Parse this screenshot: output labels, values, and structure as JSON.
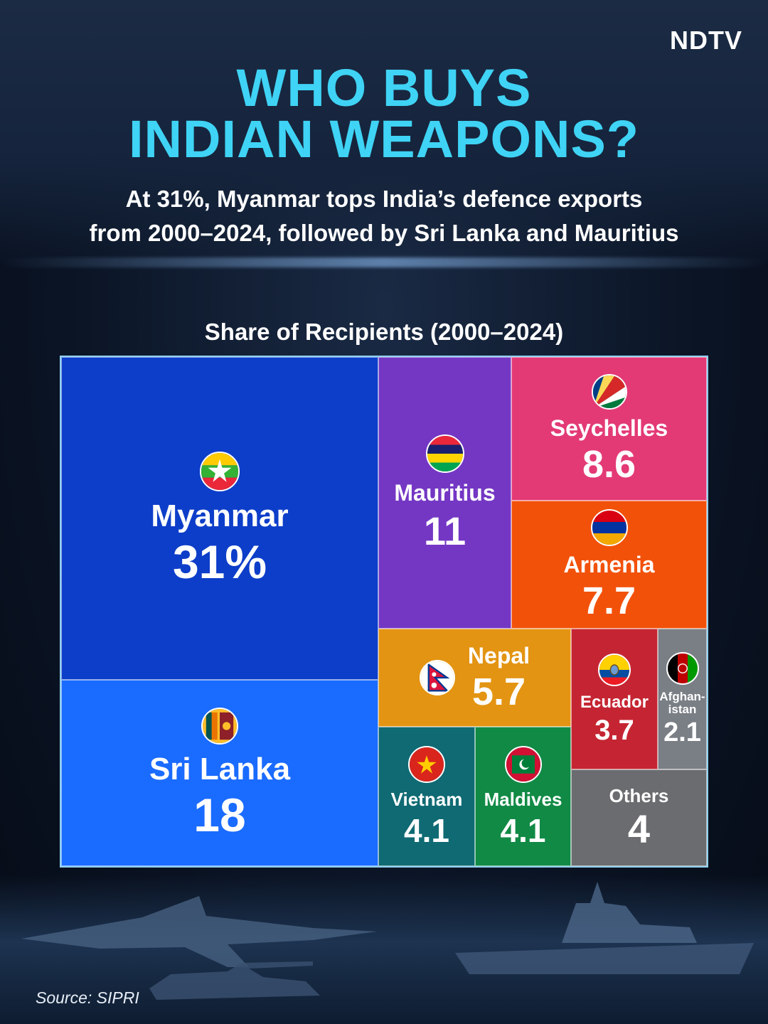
{
  "logo": "NDTV",
  "title_lines": [
    "WHO BUYS",
    "INDIAN WEAPONS?"
  ],
  "subtitle_lines": [
    "At 31%, Myanmar tops India’s defence exports",
    "from 2000–2024, followed by Sri Lanka and Mauritius"
  ],
  "source": "Source: SIPRI",
  "chart_data": {
    "type": "treemap",
    "title": "Share of Recipients (2000–2024)",
    "unit": "%",
    "items": [
      {
        "name": "Myanmar",
        "value": 31,
        "label": "31%",
        "color": "#0d3ec9",
        "flag": "myanmar"
      },
      {
        "name": "Sri Lanka",
        "value": 18,
        "label": "18",
        "color": "#1a6bff",
        "flag": "sri-lanka"
      },
      {
        "name": "Mauritius",
        "value": 11,
        "label": "11",
        "color": "#7437c4",
        "flag": "mauritius"
      },
      {
        "name": "Seychelles",
        "value": 8.6,
        "label": "8.6",
        "color": "#e33a76",
        "flag": "seychelles"
      },
      {
        "name": "Armenia",
        "value": 7.7,
        "label": "7.7",
        "color": "#f2510a",
        "flag": "armenia"
      },
      {
        "name": "Nepal",
        "value": 5.7,
        "label": "5.7",
        "color": "#e39412",
        "flag": "nepal"
      },
      {
        "name": "Ecuador",
        "value": 3.7,
        "label": "3.7",
        "color": "#c52532",
        "flag": "ecuador"
      },
      {
        "name": "Afghan-\nistan",
        "value": 2.1,
        "label": "2.1",
        "color": "#7a7f86",
        "flag": "afghanistan"
      },
      {
        "name": "Vietnam",
        "value": 4.1,
        "label": "4.1",
        "color": "#0f6a73",
        "flag": "vietnam"
      },
      {
        "name": "Maldives",
        "value": 4.1,
        "label": "4.1",
        "color": "#118a45",
        "flag": "maldives"
      },
      {
        "name": "Others",
        "value": 4,
        "label": "4",
        "color": "#6a6c70",
        "flag": ""
      }
    ]
  }
}
